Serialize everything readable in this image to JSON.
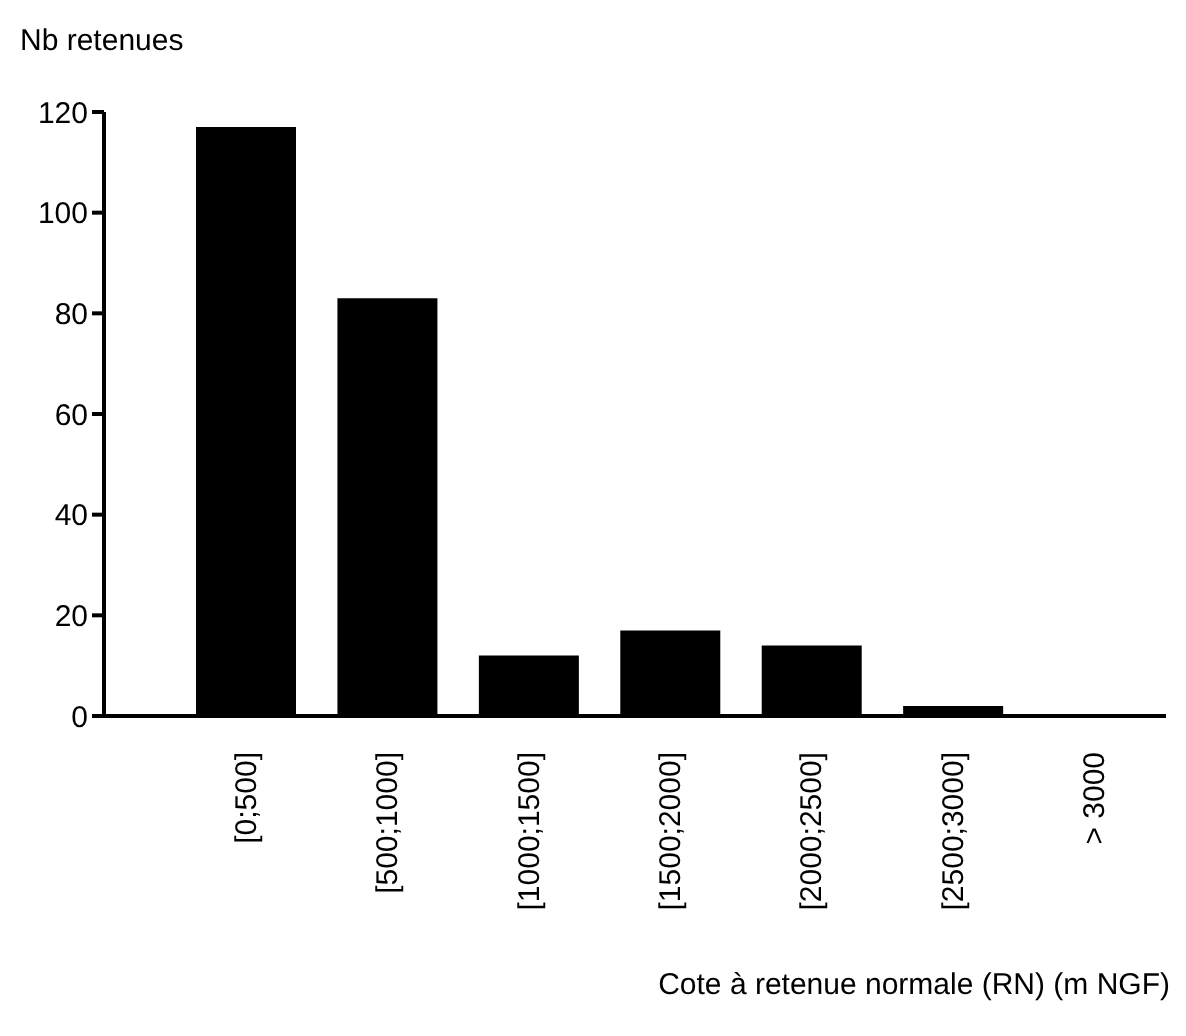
{
  "chart_data": {
    "type": "bar",
    "ylabel": "Nb retenues",
    "xlabel": "Cote à retenue normale (RN) (m NGF)",
    "categories": [
      "[0;500]",
      "[500;1000]",
      "[1000;1500]",
      "[1500;2000]",
      "[2000;2500]",
      "[2500;3000]",
      "> 3000"
    ],
    "values": [
      117,
      83,
      12,
      17,
      14,
      2,
      0
    ],
    "color": "#000000",
    "ylim": [
      0,
      120
    ],
    "yticks": [
      0,
      20,
      40,
      60,
      80,
      100,
      120
    ],
    "grid": false
  }
}
